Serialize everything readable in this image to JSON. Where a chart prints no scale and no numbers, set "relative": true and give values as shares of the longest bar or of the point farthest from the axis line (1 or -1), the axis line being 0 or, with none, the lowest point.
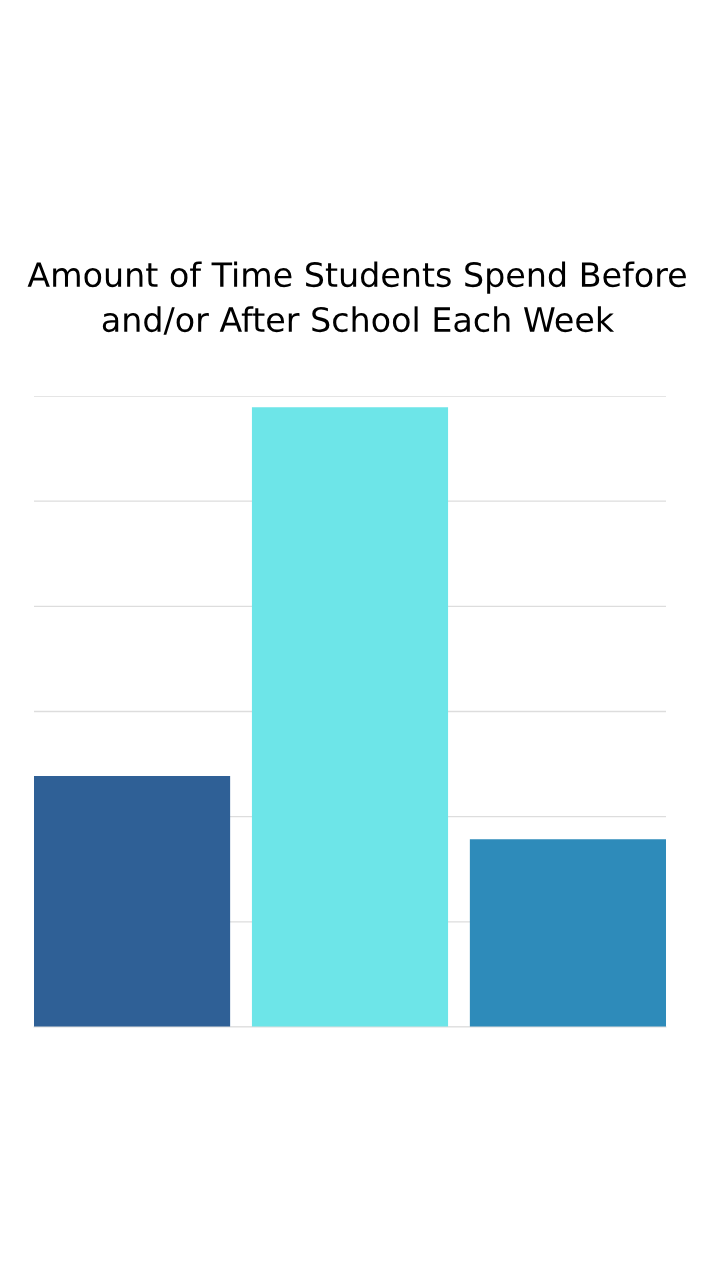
{
  "chart_data": {
    "type": "bar",
    "title": "Amount of Time Students Spend Before and/or After School Each Week",
    "categories": [
      null,
      null,
      null
    ],
    "values": [
      0.405,
      1,
      0.303
    ],
    "colors": [
      "#2f6096",
      "#6de5e8",
      "#2e8bba"
    ],
    "relative": true,
    "grid": "y"
  }
}
